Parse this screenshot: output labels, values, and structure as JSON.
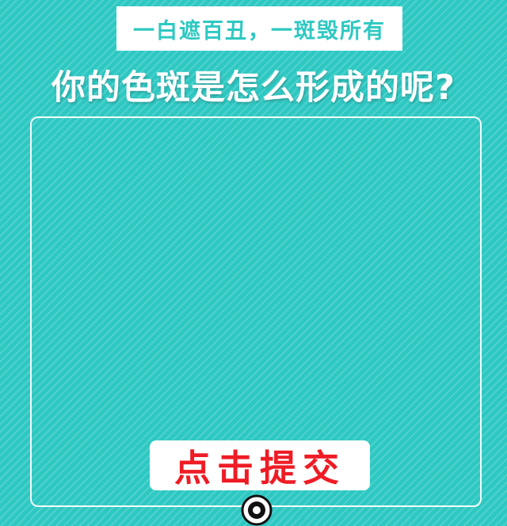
{
  "tagline": "一白遮百丑，一斑毁所有",
  "headline": "你的色斑是怎么形成的呢?",
  "submit_button": {
    "label": "点击提交"
  },
  "icons": {
    "bottom_knob": "record-button-icon"
  },
  "colors": {
    "background": "#2ec8c2",
    "accent_text": "#2ec8c2",
    "button_text": "#ee1c25",
    "white": "#ffffff"
  }
}
